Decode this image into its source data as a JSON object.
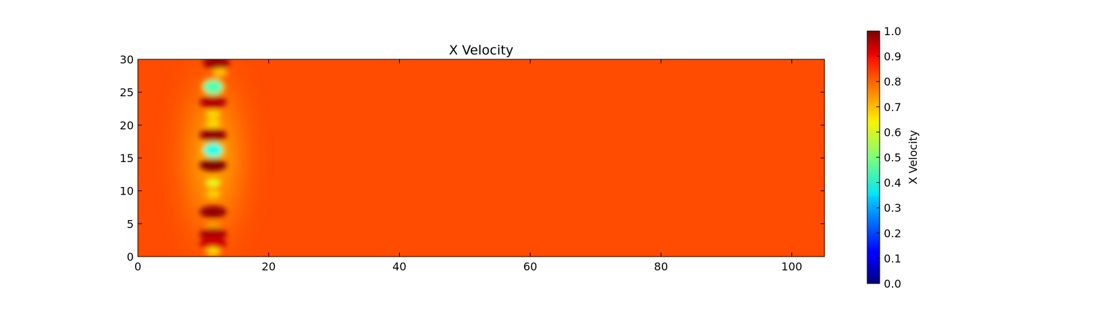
{
  "chart_data": {
    "type": "heatmap",
    "title": "X Velocity",
    "xlabel": "",
    "ylabel": "",
    "xlim": [
      0,
      105
    ],
    "ylim": [
      0,
      30
    ],
    "x_ticks": [
      0,
      20,
      40,
      60,
      80,
      100
    ],
    "y_ticks": [
      0,
      5,
      10,
      15,
      20,
      25,
      30
    ],
    "colormap": "jet",
    "colorbar": {
      "label": "X Velocity",
      "range": [
        0.0,
        1.0
      ],
      "ticks": [
        "0.0",
        "0.1",
        "0.2",
        "0.3",
        "0.4",
        "0.5",
        "0.6",
        "0.7",
        "0.8",
        "0.9",
        "1.0"
      ]
    },
    "background_value": 0.8,
    "wake_line_x": 11.5,
    "features": [
      {
        "x": 12,
        "y": 29.5,
        "value": 0.97
      },
      {
        "x": 12.5,
        "y": 28,
        "value": 0.68
      },
      {
        "x": 11.5,
        "y": 25.8,
        "value": 0.45
      },
      {
        "x": 11.5,
        "y": 23.5,
        "value": 0.95
      },
      {
        "x": 11.5,
        "y": 21.6,
        "value": 0.66
      },
      {
        "x": 11.5,
        "y": 20.2,
        "value": 0.66
      },
      {
        "x": 11.5,
        "y": 18.5,
        "value": 0.98
      },
      {
        "x": 11.5,
        "y": 16.2,
        "value": 0.4
      },
      {
        "x": 11.5,
        "y": 13.9,
        "value": 1.0
      },
      {
        "x": 11.5,
        "y": 11.2,
        "value": 0.6
      },
      {
        "x": 11.5,
        "y": 9.5,
        "value": 0.67
      },
      {
        "x": 11.5,
        "y": 6.8,
        "value": 0.98
      },
      {
        "x": 11.5,
        "y": 4.7,
        "value": 0.72
      },
      {
        "x": 11.5,
        "y": 3.4,
        "value": 0.96
      },
      {
        "x": 11.5,
        "y": 2.0,
        "value": 0.92
      },
      {
        "x": 11.5,
        "y": 0.8,
        "value": 0.66
      }
    ]
  }
}
